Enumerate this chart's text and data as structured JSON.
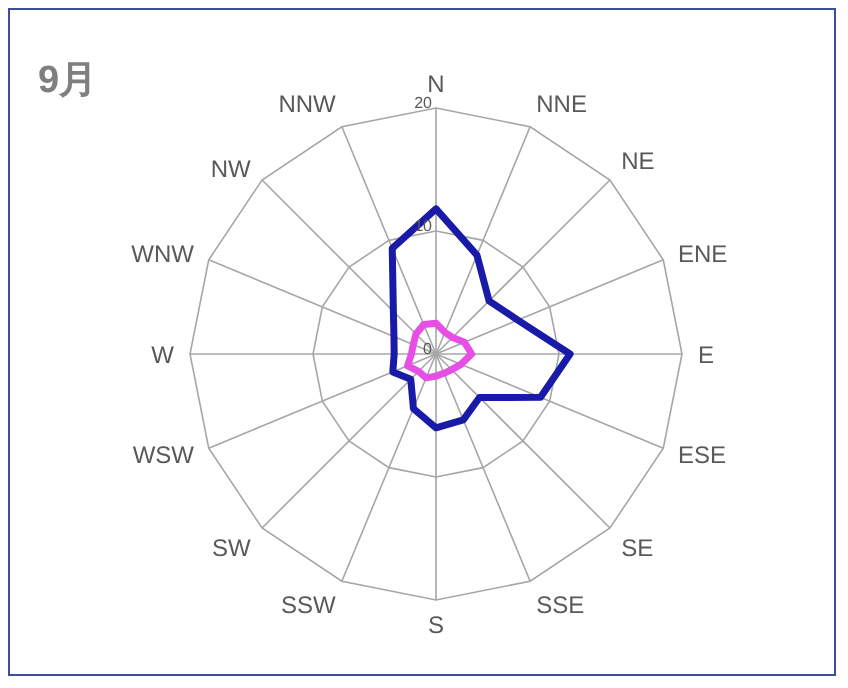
{
  "chart_data": {
    "type": "radar",
    "title": "9月",
    "categories": [
      "N",
      "NNE",
      "NE",
      "ENE",
      "E",
      "ESE",
      "SE",
      "SSE",
      "S",
      "SSW",
      "SW",
      "WSW",
      "W",
      "WNW",
      "NW",
      "NNW"
    ],
    "series": [
      {
        "color": "#1a1aa8",
        "values": [
          11.8,
          8.7,
          6.1,
          7.2,
          10.9,
          9.2,
          5.0,
          5.8,
          6.0,
          4.8,
          2.9,
          3.8,
          3.4,
          3.7,
          4.9,
          9.3
        ]
      },
      {
        "color": "#e64ee6",
        "values": [
          2.5,
          1.9,
          1.9,
          2.5,
          2.9,
          2.2,
          1.8,
          1.7,
          1.8,
          2.1,
          2.0,
          2.5,
          2.0,
          2.0,
          2.3,
          2.6
        ]
      }
    ],
    "ylim": [
      0,
      20
    ],
    "yticks": [
      0,
      10,
      20
    ],
    "grid": true,
    "marker": "none",
    "line_style": "solid"
  }
}
